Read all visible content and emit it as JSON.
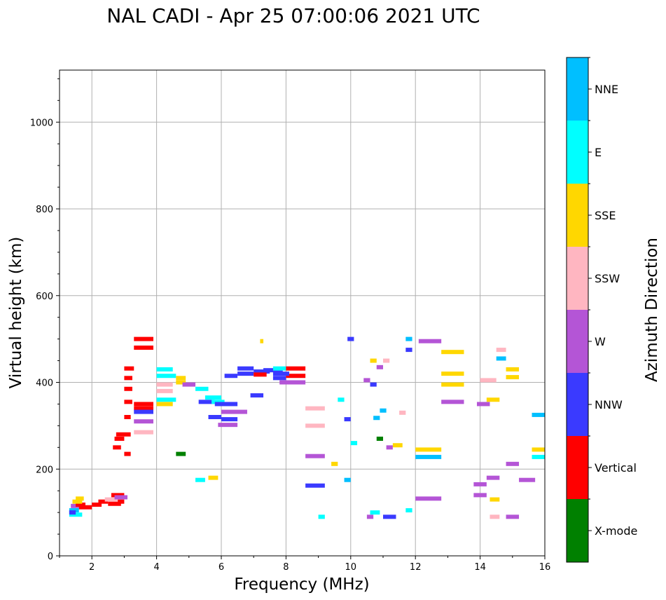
{
  "chart_data": {
    "type": "scatter",
    "title": "NAL CADI - Apr 25 07:00:06 2021 UTC",
    "xlabel": "Frequency (MHz)",
    "ylabel": "Virtual height (km)",
    "xlim": [
      1.0,
      16.0
    ],
    "ylim": [
      0,
      1120
    ],
    "xticks": [
      2,
      4,
      6,
      8,
      10,
      12,
      14,
      16
    ],
    "yticks": [
      0,
      200,
      400,
      600,
      800,
      1000
    ],
    "grid": true,
    "colorbar": {
      "label": "Azimuth Direction",
      "categories": [
        {
          "name": "X-mode",
          "color": "#008000"
        },
        {
          "name": "Vertical",
          "color": "#ff0000"
        },
        {
          "name": "NNW",
          "color": "#3a3aff"
        },
        {
          "name": "W",
          "color": "#b455d6"
        },
        {
          "name": "SSW",
          "color": "#ffb6c1"
        },
        {
          "name": "SSE",
          "color": "#ffd700"
        },
        {
          "name": "E",
          "color": "#00ffff"
        },
        {
          "name": "NNE",
          "color": "#00bfff"
        }
      ]
    },
    "segments": [
      {
        "f0": 1.3,
        "f1": 1.7,
        "h": 95,
        "c": "E"
      },
      {
        "f0": 1.3,
        "f1": 1.6,
        "h": 105,
        "c": "NNE"
      },
      {
        "f0": 1.35,
        "f1": 1.75,
        "h": 115,
        "c": "W"
      },
      {
        "f0": 1.5,
        "f1": 1.8,
        "h": 118,
        "c": "Vertical"
      },
      {
        "f0": 1.4,
        "f1": 1.7,
        "h": 125,
        "c": "SSE"
      },
      {
        "f0": 1.6,
        "f1": 2.0,
        "h": 112,
        "c": "Vertical"
      },
      {
        "f0": 1.5,
        "f1": 1.75,
        "h": 132,
        "c": "SSE"
      },
      {
        "f0": 1.3,
        "f1": 1.5,
        "h": 100,
        "c": "NNW"
      },
      {
        "f0": 2.0,
        "f1": 2.3,
        "h": 118,
        "c": "Vertical"
      },
      {
        "f0": 2.2,
        "f1": 2.5,
        "h": 125,
        "c": "Vertical"
      },
      {
        "f0": 2.4,
        "f1": 2.8,
        "h": 130,
        "c": "SSW"
      },
      {
        "f0": 2.5,
        "f1": 2.9,
        "h": 120,
        "c": "Vertical"
      },
      {
        "f0": 2.6,
        "f1": 3.0,
        "h": 140,
        "c": "Vertical"
      },
      {
        "f0": 2.7,
        "f1": 3.1,
        "h": 135,
        "c": "W"
      },
      {
        "f0": 2.8,
        "f1": 3.0,
        "h": 125,
        "c": "Vertical"
      },
      {
        "f0": 2.65,
        "f1": 2.9,
        "h": 250,
        "c": "Vertical"
      },
      {
        "f0": 2.7,
        "f1": 3.0,
        "h": 270,
        "c": "Vertical"
      },
      {
        "f0": 2.75,
        "f1": 3.2,
        "h": 280,
        "c": "Vertical"
      },
      {
        "f0": 3.0,
        "f1": 3.2,
        "h": 320,
        "c": "Vertical"
      },
      {
        "f0": 3.0,
        "f1": 3.25,
        "h": 355,
        "c": "Vertical"
      },
      {
        "f0": 3.0,
        "f1": 3.25,
        "h": 385,
        "c": "Vertical"
      },
      {
        "f0": 3.0,
        "f1": 3.25,
        "h": 410,
        "c": "Vertical"
      },
      {
        "f0": 3.0,
        "f1": 3.3,
        "h": 432,
        "c": "Vertical"
      },
      {
        "f0": 3.0,
        "f1": 3.2,
        "h": 235,
        "c": "Vertical"
      },
      {
        "f0": 3.3,
        "f1": 3.9,
        "h": 500,
        "c": "Vertical"
      },
      {
        "f0": 3.3,
        "f1": 3.9,
        "h": 480,
        "c": "Vertical"
      },
      {
        "f0": 3.3,
        "f1": 3.9,
        "h": 350,
        "c": "Vertical"
      },
      {
        "f0": 3.3,
        "f1": 3.9,
        "h": 340,
        "c": "Vertical"
      },
      {
        "f0": 3.3,
        "f1": 3.9,
        "h": 332,
        "c": "NNW"
      },
      {
        "f0": 3.3,
        "f1": 3.9,
        "h": 310,
        "c": "W"
      },
      {
        "f0": 3.3,
        "f1": 3.9,
        "h": 285,
        "c": "SSW"
      },
      {
        "f0": 4.0,
        "f1": 4.5,
        "h": 430,
        "c": "E"
      },
      {
        "f0": 4.0,
        "f1": 4.6,
        "h": 415,
        "c": "E"
      },
      {
        "f0": 4.0,
        "f1": 4.5,
        "h": 395,
        "c": "SSW"
      },
      {
        "f0": 4.0,
        "f1": 4.5,
        "h": 380,
        "c": "SSW"
      },
      {
        "f0": 4.0,
        "f1": 4.6,
        "h": 360,
        "c": "E"
      },
      {
        "f0": 4.0,
        "f1": 4.5,
        "h": 350,
        "c": "SSE"
      },
      {
        "f0": 4.6,
        "f1": 4.9,
        "h": 410,
        "c": "SSE"
      },
      {
        "f0": 4.6,
        "f1": 4.9,
        "h": 400,
        "c": "SSE"
      },
      {
        "f0": 4.8,
        "f1": 5.2,
        "h": 395,
        "c": "W"
      },
      {
        "f0": 5.2,
        "f1": 5.6,
        "h": 385,
        "c": "E"
      },
      {
        "f0": 5.3,
        "f1": 5.8,
        "h": 355,
        "c": "NNW"
      },
      {
        "f0": 5.5,
        "f1": 6.0,
        "h": 365,
        "c": "E"
      },
      {
        "f0": 5.7,
        "f1": 6.1,
        "h": 355,
        "c": "E"
      },
      {
        "f0": 5.8,
        "f1": 6.5,
        "h": 350,
        "c": "NNW"
      },
      {
        "f0": 5.6,
        "f1": 6.0,
        "h": 320,
        "c": "NNW"
      },
      {
        "f0": 6.0,
        "f1": 6.5,
        "h": 315,
        "c": "NNW"
      },
      {
        "f0": 5.9,
        "f1": 6.5,
        "h": 302,
        "c": "W"
      },
      {
        "f0": 6.0,
        "f1": 6.8,
        "h": 332,
        "c": "W"
      },
      {
        "f0": 4.6,
        "f1": 4.9,
        "h": 235,
        "c": "X-mode"
      },
      {
        "f0": 5.2,
        "f1": 5.5,
        "h": 175,
        "c": "E"
      },
      {
        "f0": 5.6,
        "f1": 5.9,
        "h": 180,
        "c": "SSE"
      },
      {
        "f0": 6.1,
        "f1": 6.5,
        "h": 415,
        "c": "NNW"
      },
      {
        "f0": 6.5,
        "f1": 7.0,
        "h": 420,
        "c": "NNW"
      },
      {
        "f0": 6.5,
        "f1": 7.0,
        "h": 432,
        "c": "NNW"
      },
      {
        "f0": 7.0,
        "f1": 7.5,
        "h": 425,
        "c": "NNW"
      },
      {
        "f0": 7.3,
        "f1": 7.9,
        "h": 428,
        "c": "NNW"
      },
      {
        "f0": 7.6,
        "f1": 8.0,
        "h": 432,
        "c": "E"
      },
      {
        "f0": 7.0,
        "f1": 7.4,
        "h": 418,
        "c": "Vertical"
      },
      {
        "f0": 7.6,
        "f1": 8.0,
        "h": 410,
        "c": "NNW"
      },
      {
        "f0": 7.8,
        "f1": 8.6,
        "h": 400,
        "c": "W"
      },
      {
        "f0": 8.0,
        "f1": 8.6,
        "h": 415,
        "c": "Vertical"
      },
      {
        "f0": 8.0,
        "f1": 8.6,
        "h": 432,
        "c": "Vertical"
      },
      {
        "f0": 7.6,
        "f1": 8.1,
        "h": 420,
        "c": "NNW"
      },
      {
        "f0": 6.9,
        "f1": 7.3,
        "h": 370,
        "c": "NNW"
      },
      {
        "f0": 7.2,
        "f1": 7.3,
        "h": 495,
        "c": "SSE"
      },
      {
        "f0": 8.6,
        "f1": 9.2,
        "h": 340,
        "c": "SSW"
      },
      {
        "f0": 8.6,
        "f1": 9.2,
        "h": 300,
        "c": "SSW"
      },
      {
        "f0": 8.6,
        "f1": 9.2,
        "h": 230,
        "c": "W"
      },
      {
        "f0": 8.6,
        "f1": 9.2,
        "h": 162,
        "c": "NNW"
      },
      {
        "f0": 9.6,
        "f1": 9.8,
        "h": 360,
        "c": "E"
      },
      {
        "f0": 9.8,
        "f1": 10.0,
        "h": 315,
        "c": "NNW"
      },
      {
        "f0": 9.8,
        "f1": 10.0,
        "h": 175,
        "c": "NNE"
      },
      {
        "f0": 10.5,
        "f1": 10.7,
        "h": 90,
        "c": "W"
      },
      {
        "f0": 10.6,
        "f1": 10.9,
        "h": 100,
        "c": "E"
      },
      {
        "f0": 10.6,
        "f1": 10.8,
        "h": 450,
        "c": "SSE"
      },
      {
        "f0": 10.8,
        "f1": 11.0,
        "h": 435,
        "c": "W"
      },
      {
        "f0": 11.0,
        "f1": 11.2,
        "h": 450,
        "c": "SSW"
      },
      {
        "f0": 11.0,
        "f1": 11.4,
        "h": 90,
        "c": "NNW"
      },
      {
        "f0": 11.5,
        "f1": 11.7,
        "h": 330,
        "c": "SSW"
      },
      {
        "f0": 11.7,
        "f1": 11.9,
        "h": 500,
        "c": "NNE"
      },
      {
        "f0": 11.7,
        "f1": 11.9,
        "h": 475,
        "c": "NNW"
      },
      {
        "f0": 11.7,
        "f1": 11.9,
        "h": 105,
        "c": "E"
      },
      {
        "f0": 12.1,
        "f1": 12.8,
        "h": 495,
        "c": "W"
      },
      {
        "f0": 12.0,
        "f1": 12.8,
        "h": 245,
        "c": "SSE"
      },
      {
        "f0": 12.0,
        "f1": 12.8,
        "h": 228,
        "c": "NNE"
      },
      {
        "f0": 12.0,
        "f1": 12.8,
        "h": 132,
        "c": "W"
      },
      {
        "f0": 12.8,
        "f1": 13.5,
        "h": 470,
        "c": "SSE"
      },
      {
        "f0": 12.8,
        "f1": 13.5,
        "h": 420,
        "c": "SSE"
      },
      {
        "f0": 12.8,
        "f1": 13.5,
        "h": 395,
        "c": "SSE"
      },
      {
        "f0": 12.8,
        "f1": 13.5,
        "h": 355,
        "c": "W"
      },
      {
        "f0": 13.9,
        "f1": 14.3,
        "h": 350,
        "c": "W"
      },
      {
        "f0": 14.0,
        "f1": 14.5,
        "h": 405,
        "c": "SSW"
      },
      {
        "f0": 14.2,
        "f1": 14.6,
        "h": 360,
        "c": "SSE"
      },
      {
        "f0": 14.2,
        "f1": 14.6,
        "h": 180,
        "c": "W"
      },
      {
        "f0": 14.3,
        "f1": 14.6,
        "h": 130,
        "c": "SSE"
      },
      {
        "f0": 14.3,
        "f1": 14.6,
        "h": 90,
        "c": "SSW"
      },
      {
        "f0": 14.5,
        "f1": 14.8,
        "h": 475,
        "c": "SSW"
      },
      {
        "f0": 14.5,
        "f1": 14.8,
        "h": 455,
        "c": "NNE"
      },
      {
        "f0": 14.8,
        "f1": 15.2,
        "h": 430,
        "c": "SSE"
      },
      {
        "f0": 14.8,
        "f1": 15.2,
        "h": 412,
        "c": "SSE"
      },
      {
        "f0": 14.8,
        "f1": 15.2,
        "h": 212,
        "c": "W"
      },
      {
        "f0": 14.8,
        "f1": 15.2,
        "h": 90,
        "c": "W"
      },
      {
        "f0": 15.2,
        "f1": 15.7,
        "h": 175,
        "c": "W"
      },
      {
        "f0": 15.6,
        "f1": 16.0,
        "h": 325,
        "c": "NNE"
      },
      {
        "f0": 15.6,
        "f1": 16.0,
        "h": 245,
        "c": "SSE"
      },
      {
        "f0": 15.6,
        "f1": 16.0,
        "h": 228,
        "c": "E"
      },
      {
        "f0": 13.8,
        "f1": 14.2,
        "h": 165,
        "c": "W"
      },
      {
        "f0": 13.8,
        "f1": 14.2,
        "h": 140,
        "c": "W"
      },
      {
        "f0": 10.0,
        "f1": 10.2,
        "h": 260,
        "c": "E"
      },
      {
        "f0": 9.4,
        "f1": 9.6,
        "h": 212,
        "c": "SSE"
      },
      {
        "f0": 9.0,
        "f1": 9.2,
        "h": 90,
        "c": "E"
      },
      {
        "f0": 11.3,
        "f1": 11.6,
        "h": 255,
        "c": "SSE"
      },
      {
        "f0": 11.1,
        "f1": 11.3,
        "h": 250,
        "c": "W"
      },
      {
        "f0": 10.6,
        "f1": 10.8,
        "h": 395,
        "c": "NNW"
      },
      {
        "f0": 10.4,
        "f1": 10.6,
        "h": 405,
        "c": "W"
      },
      {
        "f0": 10.9,
        "f1": 11.1,
        "h": 335,
        "c": "NNE"
      },
      {
        "f0": 10.8,
        "f1": 11.0,
        "h": 270,
        "c": "X-mode"
      },
      {
        "f0": 10.7,
        "f1": 10.9,
        "h": 318,
        "c": "NNE"
      },
      {
        "f0": 9.9,
        "f1": 10.1,
        "h": 500,
        "c": "NNW"
      }
    ]
  }
}
